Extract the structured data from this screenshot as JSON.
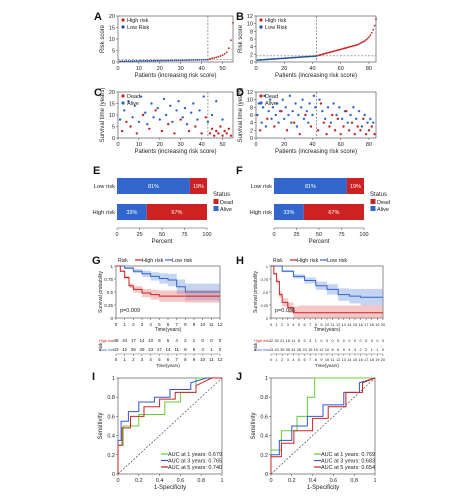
{
  "panels": {
    "A": {
      "letter": "A",
      "type": "scatter",
      "ylabel": "Risk score",
      "xlabel": "Patients (increasing risk score)",
      "xlim": [
        0,
        55
      ],
      "ylim": [
        0,
        20
      ],
      "xticks": [
        0,
        10,
        20,
        30,
        40,
        50
      ],
      "yticks": [
        0,
        5,
        10,
        15,
        20
      ],
      "cutoff_x": 43,
      "threshold_y": 1,
      "legend": [
        "High risk",
        "Low Risk"
      ],
      "low_count": 43,
      "high_count": 12,
      "high_values": [
        1.4,
        1.6,
        1.8,
        2.0,
        2.3,
        2.6,
        3.0,
        3.5,
        4.2,
        6.0,
        9.5,
        17
      ]
    },
    "B": {
      "letter": "B",
      "type": "scatter",
      "ylabel": "Risk score",
      "xlabel": "Patients (increasing risk score)",
      "xlim": [
        0,
        85
      ],
      "ylim": [
        0,
        12
      ],
      "xticks": [
        0,
        20,
        40,
        60,
        80
      ],
      "yticks": [
        0,
        2,
        4,
        6,
        8,
        10,
        12
      ],
      "cutoff_x": 43,
      "threshold_y": 1.6,
      "legend": [
        "High risk",
        "Low Risk"
      ],
      "low_count": 43,
      "high_count": 42,
      "high_values": [
        1.7,
        1.8,
        1.9,
        2.0,
        2.1,
        2.2,
        2.3,
        2.4,
        2.5,
        2.6,
        2.7,
        2.8,
        2.9,
        3.0,
        3.1,
        3.2,
        3.3,
        3.4,
        3.5,
        3.6,
        3.7,
        3.8,
        3.9,
        4.0,
        4.1,
        4.2,
        4.3,
        4.4,
        4.5,
        4.7,
        4.9,
        5.1,
        5.3,
        5.5,
        5.8,
        6.1,
        6.5,
        7.0,
        7.6,
        8.4,
        9.5,
        11.2
      ]
    },
    "C": {
      "letter": "C",
      "type": "scatter",
      "ylabel": "Survival time (years)",
      "xlabel": "Patients (increasing risk score)",
      "xlim": [
        0,
        55
      ],
      "ylim": [
        0,
        20
      ],
      "xticks": [
        0,
        10,
        20,
        30,
        40,
        50
      ],
      "yticks": [
        0,
        5,
        10,
        15,
        20
      ],
      "cutoff_x": 43,
      "legend": [
        "Dead",
        "Alive"
      ],
      "dead": [
        [
          2,
          3
        ],
        [
          4,
          7
        ],
        [
          6,
          5
        ],
        [
          9,
          2
        ],
        [
          12,
          10
        ],
        [
          15,
          4
        ],
        [
          18,
          12
        ],
        [
          21,
          3
        ],
        [
          24,
          6
        ],
        [
          27,
          2
        ],
        [
          30,
          8
        ],
        [
          34,
          3
        ],
        [
          37,
          5
        ],
        [
          40,
          2
        ],
        [
          42,
          9
        ],
        [
          44,
          2
        ],
        [
          45,
          4
        ],
        [
          46,
          1
        ],
        [
          47,
          3
        ],
        [
          48,
          2
        ],
        [
          49,
          5
        ],
        [
          50,
          1
        ],
        [
          51,
          3
        ],
        [
          52,
          2
        ],
        [
          53,
          4
        ],
        [
          54,
          1
        ]
      ],
      "alive": [
        [
          1,
          8
        ],
        [
          3,
          12
        ],
        [
          5,
          16
        ],
        [
          7,
          9
        ],
        [
          8,
          14
        ],
        [
          10,
          7
        ],
        [
          11,
          18
        ],
        [
          13,
          11
        ],
        [
          14,
          6
        ],
        [
          16,
          15
        ],
        [
          17,
          9
        ],
        [
          19,
          13
        ],
        [
          20,
          8
        ],
        [
          22,
          17
        ],
        [
          23,
          10
        ],
        [
          25,
          14
        ],
        [
          26,
          7
        ],
        [
          28,
          12
        ],
        [
          29,
          16
        ],
        [
          31,
          9
        ],
        [
          32,
          13
        ],
        [
          33,
          6
        ],
        [
          35,
          11
        ],
        [
          36,
          15
        ],
        [
          38,
          8
        ],
        [
          39,
          12
        ],
        [
          41,
          18
        ],
        [
          43,
          7
        ],
        [
          45,
          10
        ],
        [
          47,
          16
        ],
        [
          50,
          8
        ]
      ]
    },
    "D": {
      "letter": "D",
      "type": "scatter",
      "ylabel": "Survival time (years)",
      "xlabel": "Patients (increasing risk score)",
      "xlim": [
        0,
        85
      ],
      "ylim": [
        0,
        12
      ],
      "xticks": [
        0,
        20,
        40,
        60,
        80
      ],
      "yticks": [
        0,
        2,
        4,
        6,
        8,
        10,
        12
      ],
      "cutoff_x": 43,
      "legend": [
        "Dead",
        "Alive"
      ],
      "dead": [
        [
          3,
          2
        ],
        [
          8,
          5
        ],
        [
          13,
          3
        ],
        [
          18,
          7
        ],
        [
          22,
          2
        ],
        [
          27,
          4
        ],
        [
          31,
          1
        ],
        [
          35,
          6
        ],
        [
          39,
          3
        ],
        [
          44,
          2
        ],
        [
          46,
          9
        ],
        [
          48,
          4
        ],
        [
          50,
          1
        ],
        [
          52,
          3
        ],
        [
          54,
          6
        ],
        [
          56,
          2
        ],
        [
          58,
          5
        ],
        [
          60,
          1
        ],
        [
          62,
          3
        ],
        [
          64,
          7
        ],
        [
          66,
          2
        ],
        [
          68,
          4
        ],
        [
          70,
          1
        ],
        [
          72,
          3
        ],
        [
          74,
          2
        ],
        [
          76,
          5
        ],
        [
          78,
          1
        ],
        [
          80,
          2
        ],
        [
          82,
          3
        ],
        [
          84,
          1
        ]
      ],
      "alive": [
        [
          1,
          6
        ],
        [
          2,
          9
        ],
        [
          4,
          4
        ],
        [
          5,
          8
        ],
        [
          6,
          11
        ],
        [
          7,
          3
        ],
        [
          9,
          7
        ],
        [
          10,
          10
        ],
        [
          11,
          5
        ],
        [
          12,
          8
        ],
        [
          14,
          6
        ],
        [
          15,
          9
        ],
        [
          16,
          4
        ],
        [
          17,
          7
        ],
        [
          19,
          10
        ],
        [
          20,
          5
        ],
        [
          21,
          8
        ],
        [
          23,
          6
        ],
        [
          24,
          11
        ],
        [
          25,
          4
        ],
        [
          26,
          7
        ],
        [
          28,
          9
        ],
        [
          29,
          3
        ],
        [
          30,
          6
        ],
        [
          32,
          8
        ],
        [
          33,
          10
        ],
        [
          34,
          5
        ],
        [
          36,
          7
        ],
        [
          37,
          4
        ],
        [
          38,
          9
        ],
        [
          40,
          6
        ],
        [
          41,
          11
        ],
        [
          42,
          8
        ],
        [
          45,
          10
        ],
        [
          47,
          7
        ],
        [
          49,
          5
        ],
        [
          51,
          8
        ],
        [
          53,
          4
        ],
        [
          55,
          9
        ],
        [
          57,
          6
        ],
        [
          59,
          8
        ],
        [
          61,
          5
        ],
        [
          63,
          7
        ],
        [
          65,
          4
        ],
        [
          67,
          6
        ],
        [
          69,
          8
        ],
        [
          71,
          5
        ],
        [
          73,
          7
        ],
        [
          75,
          3
        ],
        [
          77,
          6
        ],
        [
          79,
          4
        ],
        [
          81,
          5
        ],
        [
          83,
          4
        ]
      ]
    },
    "E": {
      "letter": "E",
      "type": "bar",
      "categories": [
        "Low risk",
        "High risk"
      ],
      "alive_pct": [
        81,
        33
      ],
      "dead_pct": [
        19,
        67
      ],
      "xlabel": "Percent",
      "xticks": [
        0,
        25,
        50,
        75,
        100
      ],
      "legend_title": "Status",
      "legend": [
        "Dead",
        "Alive"
      ]
    },
    "F": {
      "letter": "F",
      "type": "bar",
      "categories": [
        "Low risk",
        "High risk"
      ],
      "alive_pct": [
        81,
        33
      ],
      "dead_pct": [
        19,
        67
      ],
      "xlabel": "Percent",
      "xticks": [
        0,
        25,
        50,
        75,
        100
      ],
      "legend_title": "Status",
      "legend": [
        "Dead",
        "Alive"
      ]
    },
    "G": {
      "letter": "G",
      "type": "line",
      "legend_title": "Risk",
      "legend": [
        "High risk",
        "Low risk"
      ],
      "ylabel": "Survival probability",
      "xlabel": "Time(years)",
      "xlim": [
        0,
        12
      ],
      "ylim": [
        0,
        1
      ],
      "xticks": [
        0,
        1,
        2,
        3,
        4,
        5,
        6,
        7,
        8,
        9,
        10,
        11,
        12
      ],
      "yticks": [
        0,
        0.25,
        0.5,
        0.75,
        1
      ],
      "pvalue": "p=0.009",
      "high": {
        "t": [
          0,
          0.5,
          1,
          1.5,
          2,
          3,
          4,
          5,
          8,
          12
        ],
        "s": [
          1,
          0.9,
          0.78,
          0.62,
          0.55,
          0.48,
          0.45,
          0.42,
          0.42,
          0.42
        ]
      },
      "low": {
        "t": [
          0,
          1,
          2,
          3,
          4,
          5,
          6,
          7,
          8,
          12
        ],
        "s": [
          1,
          0.96,
          0.9,
          0.85,
          0.8,
          0.76,
          0.73,
          0.6,
          0.5,
          0.5
        ]
      },
      "risk_table_label": "Risk",
      "risk_rows": [
        "High risk",
        "Low risk"
      ],
      "risk_high": [
        48,
        34,
        17,
        14,
        10,
        8,
        6,
        4,
        2,
        1,
        0,
        0,
        0
      ],
      "risk_low": [
        43,
        42,
        35,
        28,
        23,
        17,
        14,
        11,
        8,
        5,
        3,
        1,
        0
      ]
    },
    "H": {
      "letter": "H",
      "type": "line",
      "legend_title": "Risk",
      "legend": [
        "High risk",
        "Low risk"
      ],
      "ylabel": "Survival probability",
      "xlabel": "Time(years)",
      "xlim": [
        0,
        20
      ],
      "ylim": [
        0,
        1
      ],
      "xticks": [
        0,
        1,
        2,
        3,
        4,
        5,
        6,
        7,
        8,
        9,
        10,
        11,
        12,
        13,
        14,
        15,
        16,
        17,
        18,
        19,
        20
      ],
      "yticks": [
        0,
        0.25,
        0.5,
        0.75,
        1
      ],
      "pvalue": "p=0.036",
      "high": {
        "t": [
          0,
          0.5,
          1,
          1.5,
          2,
          3,
          4,
          5
        ],
        "s": [
          1,
          0.85,
          0.7,
          0.45,
          0.3,
          0.2,
          0.1,
          0.1
        ]
      },
      "low": {
        "t": [
          0,
          2,
          4,
          6,
          8,
          10,
          12,
          14,
          16,
          20
        ],
        "s": [
          1,
          0.9,
          0.8,
          0.72,
          0.62,
          0.55,
          0.45,
          0.42,
          0.4,
          0.4
        ]
      },
      "risk_table_label": "Risk",
      "risk_rows": [
        "High risk",
        "Low risk"
      ],
      "risk_high": [
        42,
        30,
        21,
        16,
        11,
        8,
        5,
        3,
        1,
        0,
        0,
        0,
        0,
        0,
        0,
        0,
        0,
        0,
        0,
        0,
        0
      ],
      "risk_low": [
        43,
        42,
        39,
        35,
        31,
        28,
        23,
        19,
        15,
        12,
        10,
        8,
        6,
        5,
        4,
        3,
        2,
        2,
        1,
        1,
        0
      ]
    },
    "I": {
      "letter": "I",
      "type": "line",
      "ylabel": "Sensitivity",
      "xlabel": "1-Specificity",
      "xlim": [
        0,
        1
      ],
      "ylim": [
        0,
        1
      ],
      "xticks": [
        0,
        0.2,
        0.4,
        0.6,
        0.8,
        1
      ],
      "yticks": [
        0,
        0.2,
        0.4,
        0.6,
        0.8,
        1
      ],
      "series": [
        {
          "name": "AUC at 1 years: 0.679",
          "color": "#66cc33",
          "x": [
            0,
            0,
            0.05,
            0.05,
            0.2,
            0.2,
            0.45,
            0.45,
            0.6,
            0.6,
            0.75,
            0.75,
            1
          ],
          "y": [
            0,
            0.3,
            0.3,
            0.5,
            0.5,
            0.62,
            0.62,
            0.75,
            0.75,
            0.85,
            0.85,
            1,
            1
          ]
        },
        {
          "name": "AUC at 3 years: 0.765",
          "color": "#3355cc",
          "x": [
            0,
            0,
            0.03,
            0.03,
            0.1,
            0.1,
            0.2,
            0.2,
            0.35,
            0.35,
            0.5,
            0.5,
            0.7,
            0.7,
            0.85,
            1
          ],
          "y": [
            0,
            0.35,
            0.35,
            0.55,
            0.55,
            0.65,
            0.65,
            0.75,
            0.75,
            0.8,
            0.8,
            0.88,
            0.88,
            0.95,
            1,
            1
          ]
        },
        {
          "name": "AUC at 5 years: 0.740",
          "color": "#cc2222",
          "x": [
            0,
            0,
            0.04,
            0.04,
            0.12,
            0.12,
            0.25,
            0.25,
            0.4,
            0.4,
            0.55,
            0.55,
            0.75,
            0.75,
            0.9,
            1
          ],
          "y": [
            0,
            0.3,
            0.3,
            0.48,
            0.48,
            0.6,
            0.6,
            0.7,
            0.7,
            0.78,
            0.78,
            0.85,
            0.85,
            0.92,
            1,
            1
          ]
        }
      ]
    },
    "J": {
      "letter": "J",
      "type": "line",
      "ylabel": "Sensitivity",
      "xlabel": "1-Specificity",
      "xlim": [
        0,
        1
      ],
      "ylim": [
        0,
        1
      ],
      "xticks": [
        0,
        0.2,
        0.4,
        0.6,
        0.8,
        1
      ],
      "yticks": [
        0,
        0.2,
        0.4,
        0.6,
        0.8,
        1
      ],
      "series": [
        {
          "name": "AUC at 1 years: 0.769",
          "color": "#66cc33",
          "x": [
            0,
            0,
            0.1,
            0.1,
            0.25,
            0.25,
            0.35,
            0.35,
            0.42,
            0.42,
            1
          ],
          "y": [
            0,
            0.25,
            0.25,
            0.45,
            0.45,
            0.6,
            0.6,
            0.8,
            0.8,
            1,
            1
          ]
        },
        {
          "name": "AUC at 3 years: 0.683",
          "color": "#3355cc",
          "x": [
            0,
            0,
            0.08,
            0.08,
            0.2,
            0.2,
            0.35,
            0.35,
            0.5,
            0.5,
            0.7,
            0.7,
            0.85,
            0.85,
            1
          ],
          "y": [
            0,
            0.2,
            0.2,
            0.35,
            0.35,
            0.5,
            0.5,
            0.6,
            0.6,
            0.72,
            0.72,
            0.85,
            0.85,
            0.95,
            1
          ]
        },
        {
          "name": "AUC at 5 years: 0.654",
          "color": "#cc2222",
          "x": [
            0,
            0,
            0.1,
            0.1,
            0.22,
            0.22,
            0.4,
            0.4,
            0.55,
            0.55,
            0.72,
            0.72,
            0.88,
            0.88,
            1
          ],
          "y": [
            0,
            0.18,
            0.18,
            0.32,
            0.32,
            0.45,
            0.45,
            0.58,
            0.58,
            0.7,
            0.7,
            0.85,
            0.85,
            0.95,
            1
          ]
        }
      ]
    }
  },
  "colors": {
    "red": "#cc2222",
    "blue": "#3366cc",
    "dark_blue": "#1f4e9c",
    "green": "#66cc33"
  }
}
